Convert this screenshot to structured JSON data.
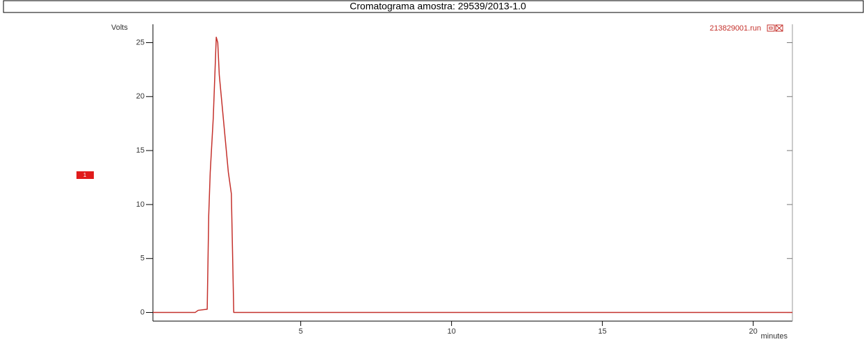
{
  "chart_data": {
    "type": "line",
    "title": "Cromatograma amostra: 29539/2013-1.0",
    "y_label": "Volts",
    "x_label": "minutes",
    "file_label": "213829001.run",
    "peak_label": "1",
    "x": [
      0.1,
      1.5,
      1.6,
      1.9,
      1.95,
      2.0,
      2.1,
      2.2,
      2.25,
      2.3,
      2.4,
      2.5,
      2.6,
      2.7,
      2.78,
      21.3
    ],
    "series": [
      {
        "name": "213829001.run",
        "color": "#c4302b",
        "values": [
          0,
          0,
          0.2,
          0.3,
          9,
          13,
          18,
          25.5,
          25,
          22,
          19,
          16,
          13,
          11,
          0,
          0
        ]
      }
    ],
    "xlim": [
      0.1,
      21.3
    ],
    "ylim": [
      -0.8,
      26.7
    ],
    "xticks": [
      5,
      10,
      15,
      20
    ],
    "yticks": [
      0,
      5,
      10,
      15,
      20,
      25
    ],
    "grid": false
  }
}
